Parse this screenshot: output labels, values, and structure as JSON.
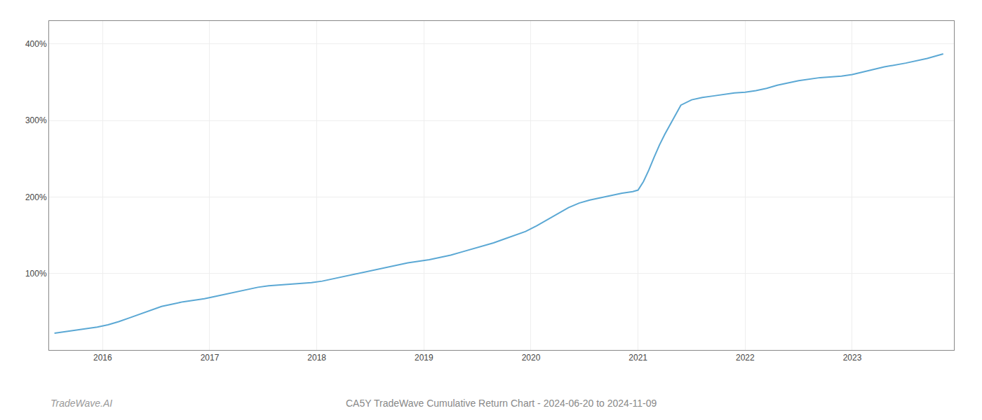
{
  "chart_data": {
    "type": "line",
    "title": "CA5Y TradeWave Cumulative Return Chart - 2024-06-20 to 2024-11-09",
    "annotations": [
      "TradeWave.AI"
    ],
    "x": [
      2015.55,
      2015.65,
      2015.75,
      2015.85,
      2015.95,
      2016.05,
      2016.15,
      2016.25,
      2016.35,
      2016.45,
      2016.55,
      2016.65,
      2016.75,
      2016.85,
      2016.95,
      2017.05,
      2017.15,
      2017.25,
      2017.35,
      2017.45,
      2017.55,
      2017.65,
      2017.75,
      2017.85,
      2017.95,
      2018.05,
      2018.15,
      2018.25,
      2018.35,
      2018.45,
      2018.55,
      2018.65,
      2018.75,
      2018.85,
      2018.95,
      2019.05,
      2019.15,
      2019.25,
      2019.35,
      2019.45,
      2019.55,
      2019.65,
      2019.75,
      2019.85,
      2019.95,
      2020.05,
      2020.15,
      2020.25,
      2020.35,
      2020.45,
      2020.55,
      2020.65,
      2020.75,
      2020.85,
      2020.95,
      2021.0,
      2021.05,
      2021.1,
      2021.15,
      2021.2,
      2021.25,
      2021.3,
      2021.35,
      2021.4,
      2021.5,
      2021.6,
      2021.7,
      2021.8,
      2021.9,
      2022.0,
      2022.1,
      2022.2,
      2022.3,
      2022.5,
      2022.7,
      2022.9,
      2023.0,
      2023.15,
      2023.3,
      2023.5,
      2023.7,
      2023.85
    ],
    "values": [
      22,
      24,
      26,
      28,
      30,
      33,
      37,
      42,
      47,
      52,
      57,
      60,
      63,
      65,
      67,
      70,
      73,
      76,
      79,
      82,
      84,
      85,
      86,
      87,
      88,
      90,
      93,
      96,
      99,
      102,
      105,
      108,
      111,
      114,
      116,
      118,
      121,
      124,
      128,
      132,
      136,
      140,
      145,
      150,
      155,
      162,
      170,
      178,
      186,
      192,
      196,
      199,
      202,
      205,
      207,
      209,
      220,
      235,
      252,
      268,
      282,
      295,
      308,
      320,
      327,
      330,
      332,
      334,
      336,
      337,
      339,
      342,
      346,
      352,
      356,
      358,
      360,
      365,
      370,
      375,
      381,
      387
    ],
    "color": "#5ba8d4",
    "xlim": [
      2015.5,
      2023.95
    ],
    "xticks": [
      2016,
      2017,
      2018,
      2019,
      2020,
      2021,
      2022,
      2023
    ],
    "ylim": [
      0,
      430
    ],
    "yticks": [
      {
        "value": 100,
        "label": "100%"
      },
      {
        "value": 200,
        "label": "200%"
      },
      {
        "value": 300,
        "label": "300%"
      },
      {
        "value": 400,
        "label": "400%"
      }
    ],
    "grid": true
  }
}
